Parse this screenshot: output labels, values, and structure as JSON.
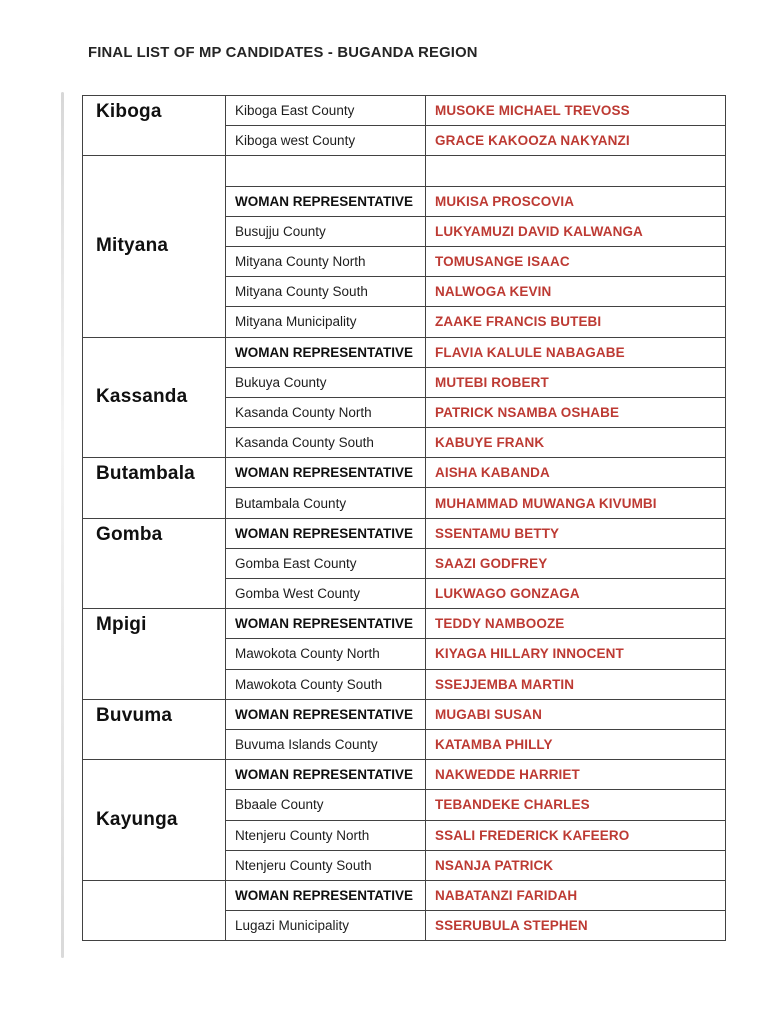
{
  "page": {
    "title": "FINAL LIST OF MP CANDIDATES - BUGANDA REGION"
  },
  "colors": {
    "candidate_red": "#bd3a33",
    "border_gray": "#424242",
    "text_black": "#1d1d1d"
  },
  "table": {
    "groups": [
      {
        "district": "Kiboga",
        "label_valign": "top",
        "rows": [
          {
            "constituency": "Kiboga East County",
            "candidate": "MUSOKE MICHAEL TREVOSS",
            "emphasis": false
          },
          {
            "constituency": "Kiboga west County",
            "candidate": "GRACE KAKOOZA NAKYANZI",
            "emphasis": false
          }
        ]
      },
      {
        "district": "Mityana",
        "label_valign": "middle",
        "rows": [
          {
            "constituency": "",
            "candidate": "",
            "emphasis": false
          },
          {
            "constituency": "WOMAN REPRESENTATIVE",
            "candidate": "MUKISA PROSCOVIA",
            "emphasis": true
          },
          {
            "constituency": "Busujju County",
            "candidate": "LUKYAMUZI DAVID KALWANGA",
            "emphasis": false
          },
          {
            "constituency": "Mityana  County North",
            "candidate": "TOMUSANGE ISAAC",
            "emphasis": false
          },
          {
            "constituency": "Mityana County South",
            "candidate": "NALWOGA KEVIN",
            "emphasis": false
          },
          {
            "constituency": "Mityana Municipality",
            "candidate": "ZAAKE FRANCIS BUTEBI",
            "emphasis": false
          }
        ]
      },
      {
        "district": "Kassanda",
        "label_valign": "middle",
        "rows": [
          {
            "constituency": "WOMAN REPRESENTATIVE",
            "candidate": "FLAVIA KALULE NABAGABE",
            "emphasis": true
          },
          {
            "constituency": "Bukuya County",
            "candidate": "MUTEBI ROBERT",
            "emphasis": false
          },
          {
            "constituency": "Kasanda County North",
            "candidate": "PATRICK NSAMBA OSHABE",
            "emphasis": false
          },
          {
            "constituency": "Kasanda County South",
            "candidate": "KABUYE FRANK",
            "emphasis": false
          }
        ]
      },
      {
        "district": "Butambala",
        "label_valign": "top",
        "rows": [
          {
            "constituency": "WOMAN REPRESENTATIVE",
            "candidate": "AISHA KABANDA",
            "emphasis": true
          },
          {
            "constituency": "Butambala County",
            "candidate": "MUHAMMAD MUWANGA KIVUMBI",
            "emphasis": false
          }
        ]
      },
      {
        "district": "Gomba",
        "label_valign": "top",
        "rows": [
          {
            "constituency": "WOMAN REPRESENTATIVE",
            "candidate": "SSENTAMU BETTY",
            "emphasis": true
          },
          {
            "constituency": "Gomba East  County",
            "candidate": "SAAZI GODFREY",
            "emphasis": false
          },
          {
            "constituency": "Gomba West County",
            "candidate": "LUKWAGO GONZAGA",
            "emphasis": false
          }
        ]
      },
      {
        "district": "Mpigi",
        "label_valign": "top",
        "rows": [
          {
            "constituency": "WOMAN REPRESENTATIVE",
            "candidate": "TEDDY NAMBOOZE",
            "emphasis": true
          },
          {
            "constituency": "Mawokota County North",
            "candidate": "KIYAGA HILLARY INNOCENT",
            "emphasis": false
          },
          {
            "constituency": "Mawokota County South",
            "candidate": "SSEJJEMBA MARTIN",
            "emphasis": false
          }
        ]
      },
      {
        "district": "Buvuma",
        "label_valign": "top",
        "rows": [
          {
            "constituency": "WOMAN REPRESENTATIVE",
            "candidate": "MUGABI SUSAN",
            "emphasis": true
          },
          {
            "constituency": "Buvuma Islands County",
            "candidate": "KATAMBA PHILLY",
            "emphasis": false
          }
        ]
      },
      {
        "district": "Kayunga",
        "label_valign": "middle",
        "rows": [
          {
            "constituency": "WOMAN REPRESENTATIVE",
            "candidate": "NAKWEDDE HARRIET",
            "emphasis": true
          },
          {
            "constituency": "Bbaale County",
            "candidate": "TEBANDEKE CHARLES",
            "emphasis": false
          },
          {
            "constituency": "Ntenjeru County North",
            "candidate": "SSALI FREDERICK KAFEERO",
            "emphasis": false
          },
          {
            "constituency": "Ntenjeru County South",
            "candidate": "NSANJA PATRICK",
            "emphasis": false
          }
        ]
      },
      {
        "district": "",
        "label_valign": "top",
        "rows": [
          {
            "constituency": "WOMAN REPRESENTATIVE",
            "candidate": "NABATANZI FARIDAH",
            "emphasis": true
          },
          {
            "constituency": "Lugazi Municipality",
            "candidate": "SSERUBULA STEPHEN",
            "emphasis": false
          }
        ]
      }
    ]
  }
}
